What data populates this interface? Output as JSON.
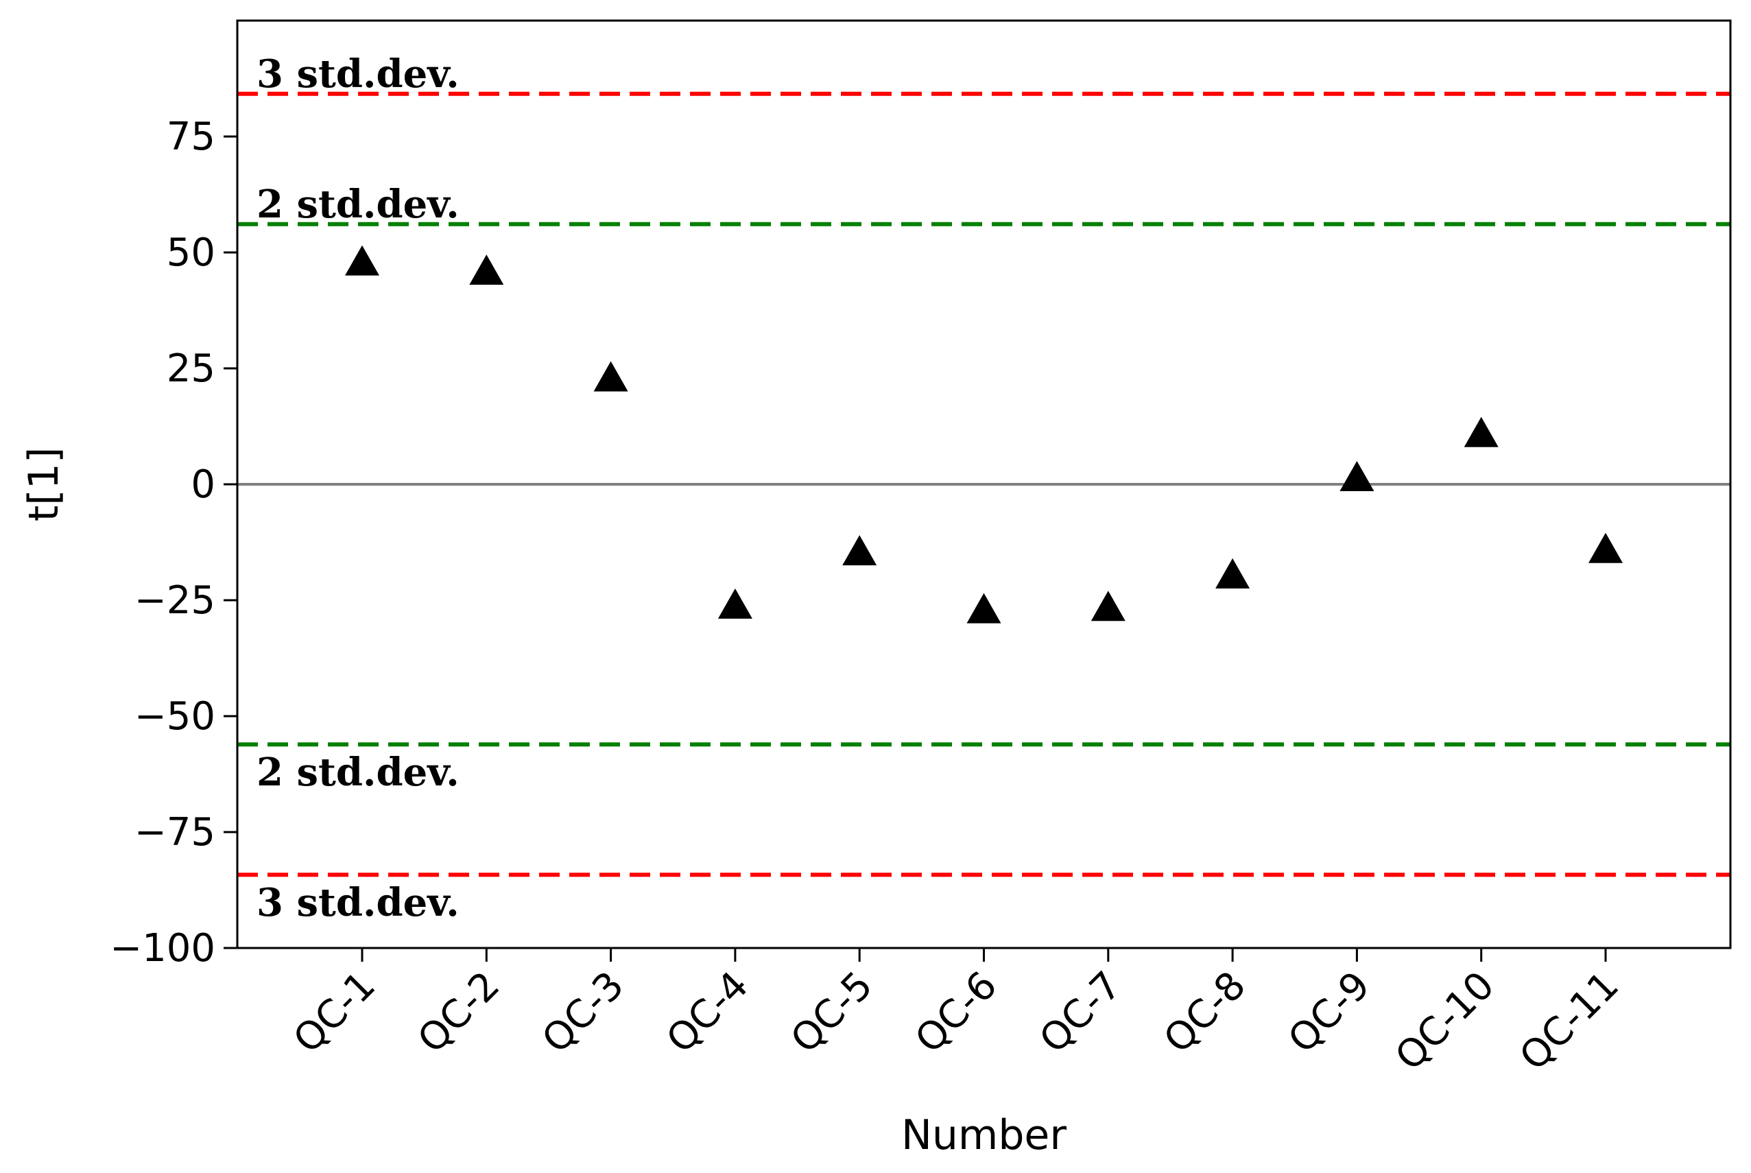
{
  "chart_data": {
    "type": "scatter",
    "categories": [
      "QC-1",
      "QC-2",
      "QC-3",
      "QC-4",
      "QC-5",
      "QC-6",
      "QC-7",
      "QC-8",
      "QC-9",
      "QC-10",
      "QC-11"
    ],
    "series": [
      {
        "values": [
          47.5,
          45.5,
          22.5,
          -26.5,
          -15,
          -27.5,
          -27,
          -20,
          1,
          10.5,
          -14.5
        ],
        "marker": "triangle",
        "color": "#000000"
      }
    ],
    "title": "",
    "xlabel": "Number",
    "ylabel": "t[1]",
    "ylim": [
      -100,
      100
    ],
    "yticks": [
      {
        "value": 75,
        "label": "75"
      },
      {
        "value": 50,
        "label": "50"
      },
      {
        "value": 25,
        "label": "25"
      },
      {
        "value": 0,
        "label": "0"
      },
      {
        "value": -25,
        "label": "−25"
      },
      {
        "value": -50,
        "label": "−50"
      },
      {
        "value": -75,
        "label": "−75"
      },
      {
        "value": -100,
        "label": "−100"
      }
    ],
    "reference_lines": [
      {
        "value": 84.2,
        "label": "3 std.dev.",
        "color": "#ff0000",
        "style": "dashed",
        "label_position": "above"
      },
      {
        "value": 56.1,
        "label": "2 std.dev.",
        "color": "#008000",
        "style": "dashed",
        "label_position": "above"
      },
      {
        "value": 0,
        "label": "",
        "color": "#808080",
        "style": "solid",
        "label_position": "none"
      },
      {
        "value": -56.1,
        "label": "2 std.dev.",
        "color": "#008000",
        "style": "dashed",
        "label_position": "below"
      },
      {
        "value": -84.2,
        "label": "3 std.dev.",
        "color": "#ff0000",
        "style": "dashed",
        "label_position": "below"
      }
    ],
    "grid": false,
    "xtick_rotation": 45
  }
}
